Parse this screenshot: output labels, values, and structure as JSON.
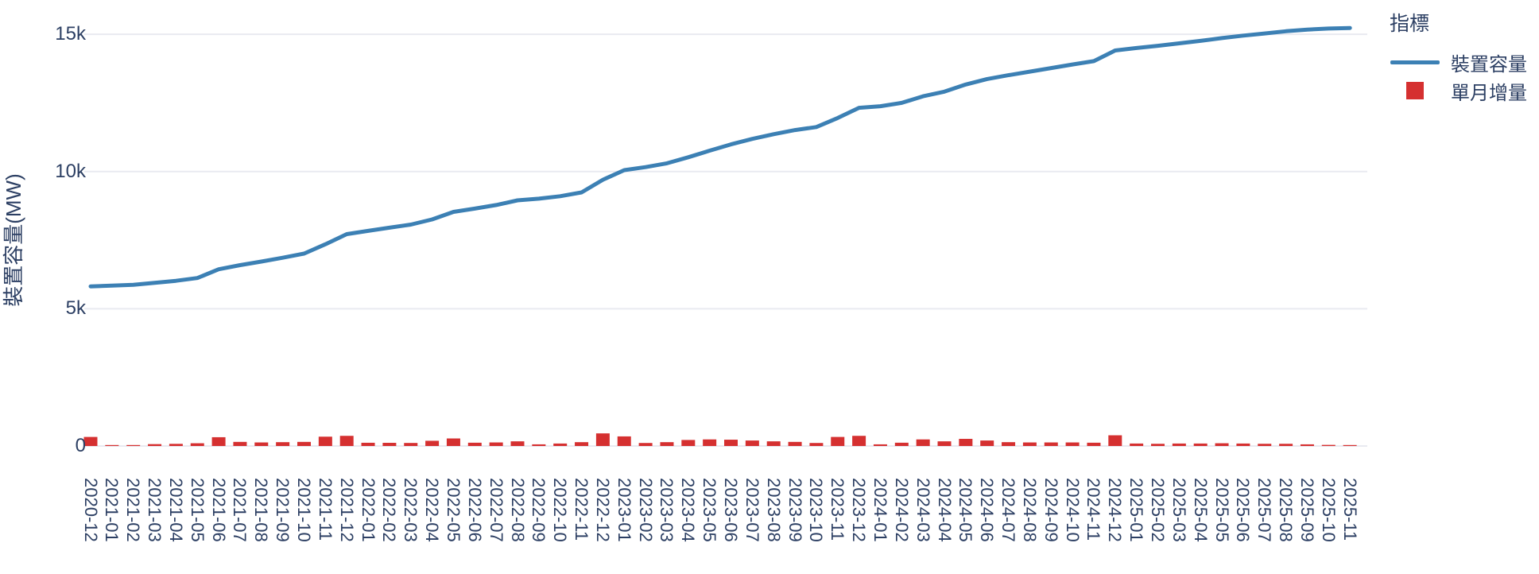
{
  "chart": {
    "y_axis": {
      "title": "裝置容量(MW)",
      "tick_labels": [
        "0",
        "5k",
        "10k",
        "15k"
      ],
      "tick_values": [
        0,
        5000,
        10000,
        15000
      ]
    },
    "legend": {
      "title": "指標",
      "items": [
        {
          "label": "裝置容量",
          "type": "line"
        },
        {
          "label": "單月增量",
          "type": "bar"
        }
      ]
    },
    "colors": {
      "line": "#3c80b4",
      "bar": "#d53030",
      "text": "#2c3f63",
      "grid": "#e9eaf1"
    }
  },
  "chart_data": {
    "type": "line+bar",
    "title": "",
    "xlabel": "",
    "ylabel": "裝置容量(MW)",
    "ylim": [
      0,
      15500
    ],
    "grid": "horizontal-only",
    "legend_position": "top-right",
    "x": [
      "2020-12",
      "2021-01",
      "2021-02",
      "2021-03",
      "2021-04",
      "2021-05",
      "2021-06",
      "2021-07",
      "2021-08",
      "2021-09",
      "2021-10",
      "2021-11",
      "2021-12",
      "2022-01",
      "2022-02",
      "2022-03",
      "2022-04",
      "2022-05",
      "2022-06",
      "2022-07",
      "2022-08",
      "2022-09",
      "2022-10",
      "2022-11",
      "2022-12",
      "2023-01",
      "2023-02",
      "2023-03",
      "2023-04",
      "2023-05",
      "2023-06",
      "2023-07",
      "2023-08",
      "2023-09",
      "2023-10",
      "2023-11",
      "2023-12",
      "2024-01",
      "2024-02",
      "2024-03",
      "2024-04",
      "2024-05",
      "2024-06",
      "2024-07",
      "2024-08",
      "2024-09",
      "2024-10",
      "2024-11",
      "2024-12",
      "2025-01",
      "2025-02",
      "2025-03",
      "2025-04",
      "2025-05",
      "2025-06",
      "2025-07",
      "2025-08",
      "2025-09",
      "2025-10",
      "2025-11"
    ],
    "series": [
      {
        "name": "裝置容量",
        "type": "line",
        "values": [
          5817,
          5843,
          5874,
          5942,
          6020,
          6120,
          6440,
          6590,
          6720,
          6860,
          7010,
          7350,
          7720,
          7838,
          7954,
          8065,
          8255,
          8530,
          8650,
          8780,
          8950,
          9010,
          9100,
          9240,
          9700,
          10050,
          10160,
          10300,
          10520,
          10760,
          10990,
          11190,
          11360,
          11510,
          11620,
          11950,
          12320,
          12380,
          12500,
          12740,
          12910,
          13170,
          13370,
          13510,
          13640,
          13770,
          13900,
          14020,
          14410,
          14500,
          14580,
          14670,
          14760,
          14860,
          14950,
          15030,
          15110,
          15170,
          15210,
          15230
        ]
      },
      {
        "name": "單月增量",
        "type": "bar",
        "values": [
          330,
          26,
          31,
          68,
          78,
          100,
          320,
          150,
          130,
          140,
          150,
          340,
          370,
          118,
          116,
          111,
          190,
          275,
          120,
          130,
          170,
          60,
          90,
          140,
          460,
          350,
          110,
          140,
          220,
          240,
          230,
          200,
          170,
          150,
          110,
          330,
          370,
          60,
          120,
          240,
          170,
          260,
          200,
          140,
          130,
          130,
          130,
          120,
          390,
          90,
          80,
          90,
          90,
          100,
          90,
          80,
          80,
          60,
          40,
          20
        ]
      }
    ]
  }
}
